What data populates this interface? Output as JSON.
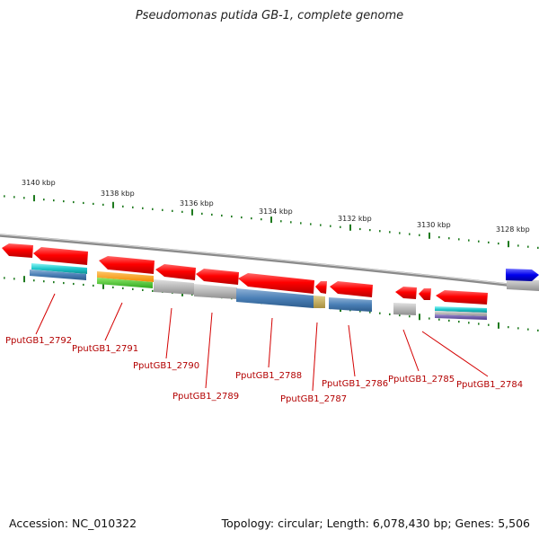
{
  "title": "Pseudomonas putida GB-1, complete genome",
  "footer": {
    "accession": "Accession: NC_010322",
    "summary": "Topology: circular; Length: 6,078,430 bp; Genes: 5,506"
  },
  "ruler_labels": [
    "3140 kbp",
    "3138 kbp",
    "3136 kbp",
    "3134 kbp",
    "3132 kbp",
    "3130 kbp",
    "3128 kbp"
  ],
  "gene_labels": [
    "PputGB1_2792",
    "PputGB1_2791",
    "PputGB1_2790",
    "PputGB1_2789",
    "PputGB1_2788",
    "PputGB1_2787",
    "PputGB1_2786",
    "PputGB1_2785",
    "PputGB1_2784"
  ],
  "colors": {
    "gene": "#ff0000",
    "label": "#b30000",
    "tick": "#1e7a1e",
    "backbone": "#8a8a8a",
    "highlight": "#0000ee"
  }
}
